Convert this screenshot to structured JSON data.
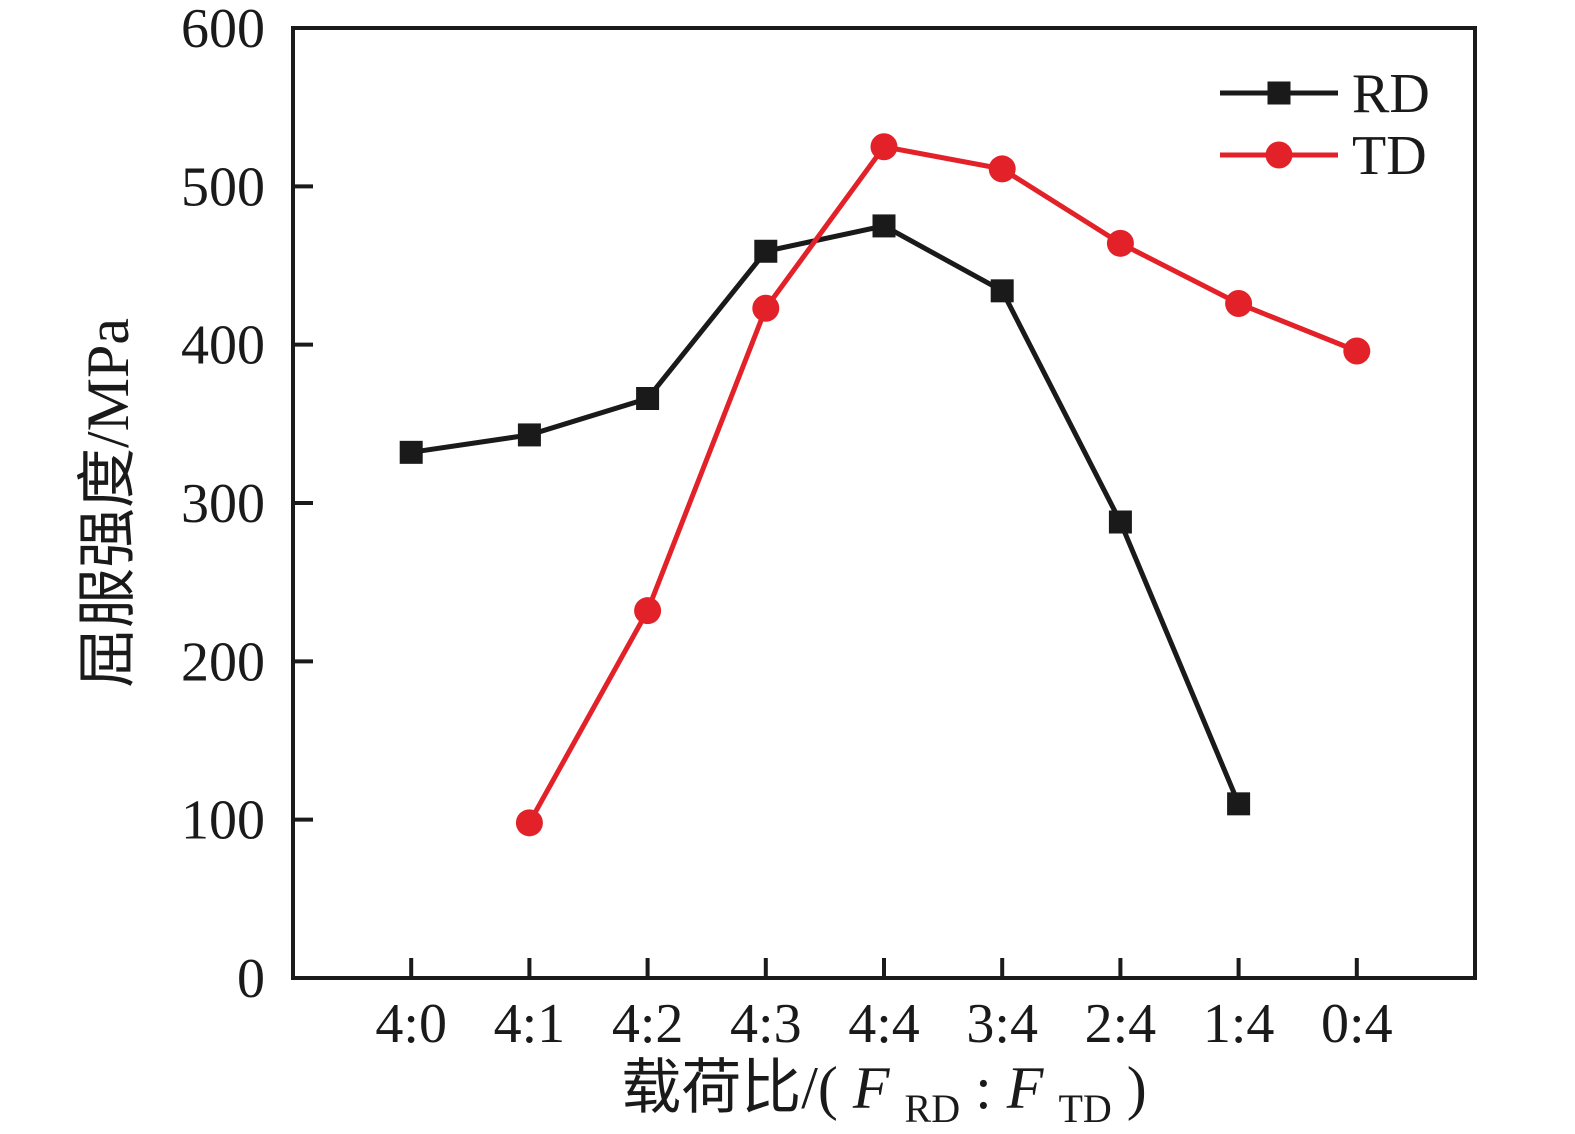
{
  "figure": {
    "background": "#ffffff",
    "axis_color": "#1a1a1a"
  },
  "chart_data": {
    "type": "line",
    "title": "",
    "ylabel": "屈服强度/MPa",
    "xlabel_parts": {
      "prefix": "载荷比/(",
      "f1": "F",
      "sub1": "RD",
      "colon": ":",
      "f2": "F",
      "sub2": "TD",
      "suffix": ")"
    },
    "categories": [
      "4:0",
      "4:1",
      "4:2",
      "4:3",
      "4:4",
      "3:4",
      "2:4",
      "1:4",
      "0:4"
    ],
    "y_ticks": [
      0,
      100,
      200,
      300,
      400,
      500,
      600
    ],
    "ylim": [
      0,
      600
    ],
    "grid": false,
    "legend_position": "top-right-inside",
    "series": [
      {
        "name": "RD",
        "color": "#1a1a1a",
        "marker": "square",
        "values": [
          332,
          343,
          366,
          459,
          475,
          434,
          288,
          110,
          null
        ]
      },
      {
        "name": "TD",
        "color": "#e32128",
        "marker": "circle",
        "values": [
          null,
          98,
          232,
          423,
          525,
          511,
          464,
          426,
          396
        ]
      }
    ]
  }
}
